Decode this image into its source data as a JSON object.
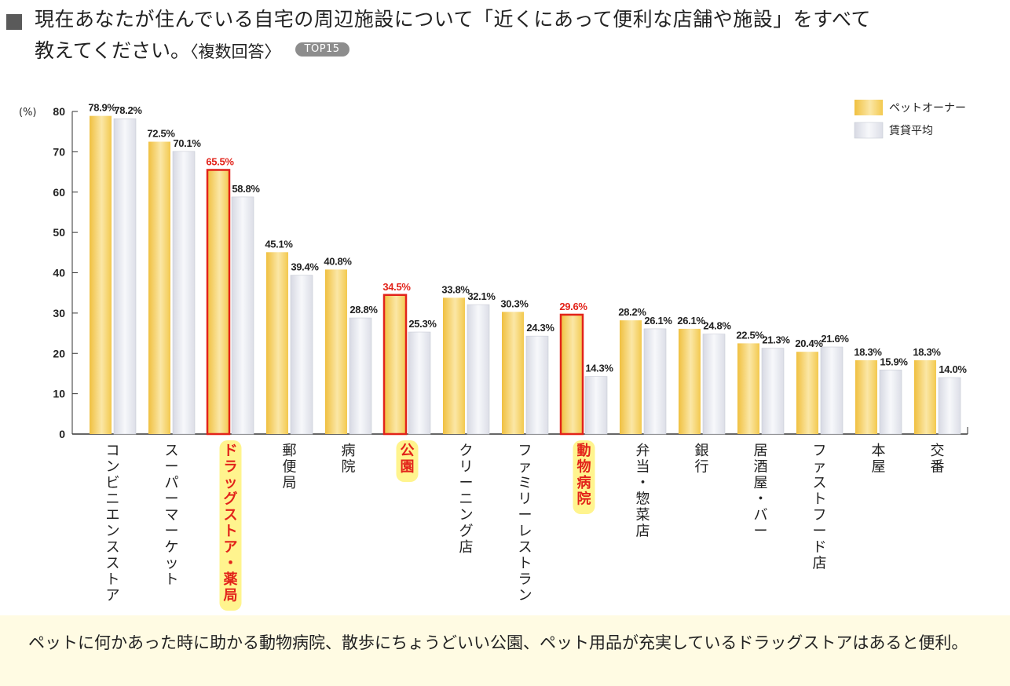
{
  "title": {
    "line1": "現在あなたが住んでいる自宅の周辺施設について「近くにあって便利な店舗や施設」をすべて",
    "line2": "教えてください。",
    "note": "〈複数回答〉",
    "badge": "TOP15"
  },
  "footer": {
    "text": "ペットに何かあった時に助かる動物病院、散歩にちょうどいい公園、ペット用品が充実しているドラッグストアはあると便利。"
  },
  "colors": {
    "owner_bar": "#f3c94f",
    "owner_bar_light": "#fbe5a1",
    "rent_bar": "#e2e4ec",
    "highlight": "#e2231a",
    "marker": "#fff27a"
  },
  "chart_data": {
    "type": "bar",
    "title": "",
    "ylabel": "(%)",
    "ylim": [
      0,
      80
    ],
    "yticks": [
      0,
      10,
      20,
      30,
      40,
      50,
      60,
      70,
      80
    ],
    "legend_position": "top-right",
    "categories": [
      "コンビニエンスストア",
      "スーパーマーケット",
      "ドラッグストア・薬局",
      "郵便局",
      "病院",
      "公園",
      "クリーニング店",
      "ファミリーレストラン",
      "動物病院",
      "弁当・惣菜店",
      "銀行",
      "居酒屋・バー",
      "ファストフード店",
      "本屋",
      "交番"
    ],
    "highlighted": [
      "ドラッグストア・薬局",
      "公園",
      "動物病院"
    ],
    "series": [
      {
        "name": "ペットオーナー",
        "values": [
          78.9,
          72.5,
          65.5,
          45.1,
          40.8,
          34.5,
          33.8,
          30.3,
          29.6,
          28.2,
          26.1,
          22.5,
          20.4,
          18.3,
          18.3
        ],
        "labels": [
          "78.9%",
          "72.5%",
          "65.5%",
          "45.1%",
          "40.8%",
          "34.5%",
          "33.8%",
          "30.3%",
          "29.6%",
          "28.2%",
          "26.1%",
          "22.5%",
          "20.4%",
          "18.3%",
          "18.3%"
        ]
      },
      {
        "name": "賃貸平均",
        "values": [
          78.2,
          70.1,
          58.8,
          39.4,
          28.8,
          25.3,
          32.1,
          24.3,
          14.3,
          26.1,
          24.8,
          21.3,
          21.6,
          15.9,
          14.0
        ],
        "labels": [
          "78.2%",
          "70.1%",
          "58.8%",
          "39.4%",
          "28.8%",
          "25.3%",
          "32.1%",
          "24.3%",
          "14.3%",
          "26.1%",
          "24.8%",
          "21.3%",
          "21.6%",
          "15.9%",
          "14.0%"
        ]
      }
    ]
  }
}
